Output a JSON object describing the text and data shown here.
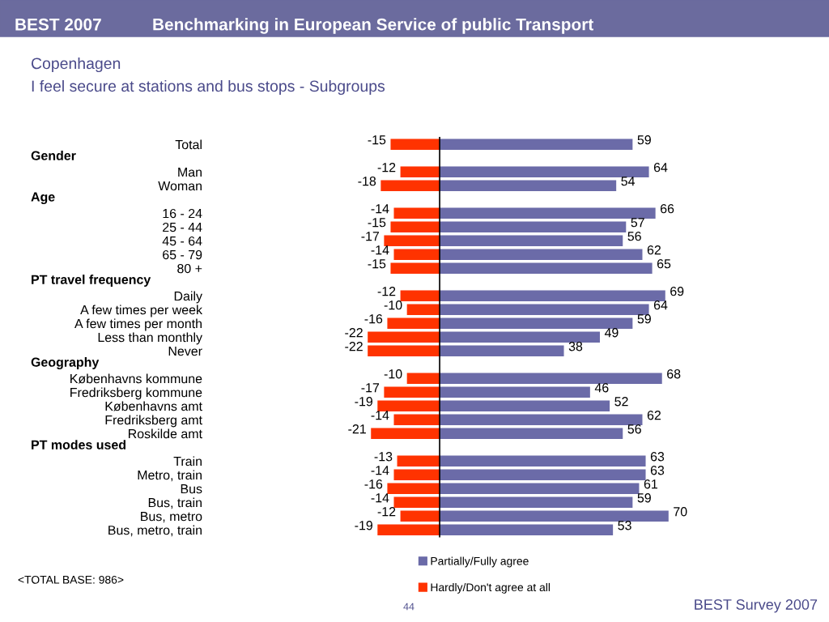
{
  "chart_data": {
    "type": "bar",
    "orientation": "horizontal",
    "stacked": true,
    "title": "Copenhagen",
    "subtitle": "I feel secure at stations and bus stops - Subgroups",
    "categories": [
      "Total",
      null,
      "Man",
      "Woman",
      null,
      "16 - 24",
      "25 - 44",
      "45 - 64",
      "65 - 79",
      "80 +",
      null,
      "Daily",
      "A few times per week",
      "A few times per month",
      "Less than monthly",
      "Never",
      null,
      "Københavns kommune",
      "Fredriksberg kommune",
      "Københavns amt",
      "Fredriksberg amt",
      "Roskilde amt",
      null,
      "Train",
      "Metro, train",
      "Bus",
      "Bus, train",
      "Bus, metro",
      "Bus, metro, train"
    ],
    "series": [
      {
        "name": "Partially/Fully agree",
        "color": "#6b6ba8",
        "values": [
          59,
          null,
          64,
          54,
          null,
          66,
          57,
          56,
          62,
          65,
          null,
          69,
          64,
          59,
          49,
          38,
          null,
          68,
          46,
          52,
          62,
          56,
          null,
          63,
          63,
          61,
          59,
          70,
          53
        ]
      },
      {
        "name": "Hardly/Don't agree at all",
        "color": "#ff3300",
        "values": [
          -15,
          null,
          -12,
          -18,
          null,
          -14,
          -15,
          -17,
          -14,
          -15,
          null,
          -12,
          -10,
          -16,
          -22,
          -22,
          null,
          -10,
          -17,
          -19,
          -14,
          -21,
          null,
          -13,
          -14,
          -16,
          -14,
          -12,
          -19
        ]
      }
    ],
    "data_labels": true,
    "legend": "bottom",
    "tick_labels": "y",
    "annotations": [
      "BEST 2007",
      "Benchmarking in European Service of public Transport",
      "<TOTAL BASE: 986>",
      "44",
      "BEST Survey 2007",
      "Gender",
      "Age",
      "PT travel frequency",
      "Geography",
      "PT modes used"
    ]
  }
}
